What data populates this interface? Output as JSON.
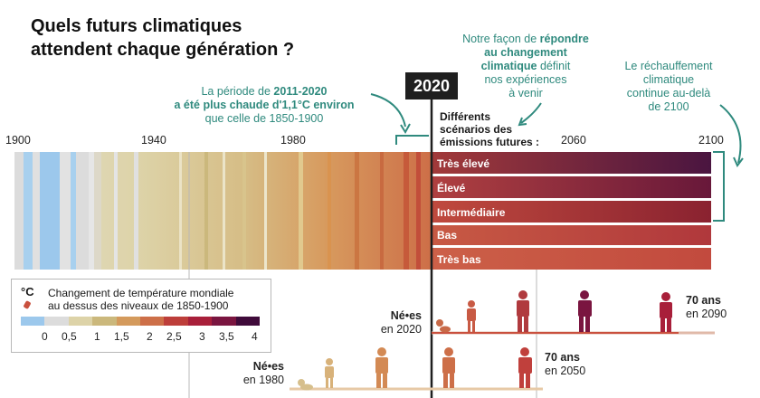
{
  "title_line1": "Quels futurs climatiques",
  "title_line2": "attendent chaque génération ?",
  "annotation_left": {
    "line1": "La période de",
    "line1_bold": "2011-2020",
    "line2": "a été plus chaude d'1,1°C environ",
    "line3": "que celle de 1850-1900"
  },
  "annotation_middle": {
    "line1": "Notre façon de",
    "line1_bold": "répondre",
    "line2": "au changement",
    "line3_bold": "climatique",
    "line3": "définit",
    "line4": "nos expériences",
    "line5": "à venir"
  },
  "annotation_right": {
    "line1": "Le réchauffement",
    "line2": "climatique",
    "line3": "continue au-delà",
    "line4": "de 2100"
  },
  "current_year": "2020",
  "scenarios_heading": {
    "line1": "Différents",
    "line2": "scénarios des",
    "line3": "émissions futures :"
  },
  "axis_years": [
    "1900",
    "1940",
    "1980",
    "2060",
    "2100"
  ],
  "scenarios": [
    "Très élevé",
    "Élevé",
    "Intermédiaire",
    "Bas",
    "Très bas"
  ],
  "scenario_colors": [
    [
      "#a23a3a",
      "#4a1540"
    ],
    [
      "#b04040",
      "#68183a"
    ],
    [
      "#c04a3e",
      "#8a2230"
    ],
    [
      "#c85a44",
      "#b0383c"
    ],
    [
      "#cc6048",
      "#c24a3e"
    ]
  ],
  "legend": {
    "unit": "°C",
    "title_line1": "Changement de température mondiale",
    "title_line2": "au dessus des niveaux de 1850-1900",
    "ticks": [
      "0",
      "0,5",
      "1",
      "1,5",
      "2",
      "2,5",
      "3",
      "3,5",
      "4"
    ],
    "colors": [
      "#9cc8ec",
      "#dcdcdc",
      "#ddd3a8",
      "#cbb87c",
      "#d49a5c",
      "#cd6f48",
      "#bd3e3a",
      "#a81f3a",
      "#7a1540",
      "#3f0b3a"
    ]
  },
  "gen2020": {
    "born_label": "Né•es",
    "born_year": "en 2020",
    "age_bold": "70 ans",
    "age_year": "en 2090"
  },
  "gen1980": {
    "born_label": "Né•es",
    "born_year": "en 1980",
    "age_bold": "70 ans",
    "age_year": "en 2050"
  }
}
